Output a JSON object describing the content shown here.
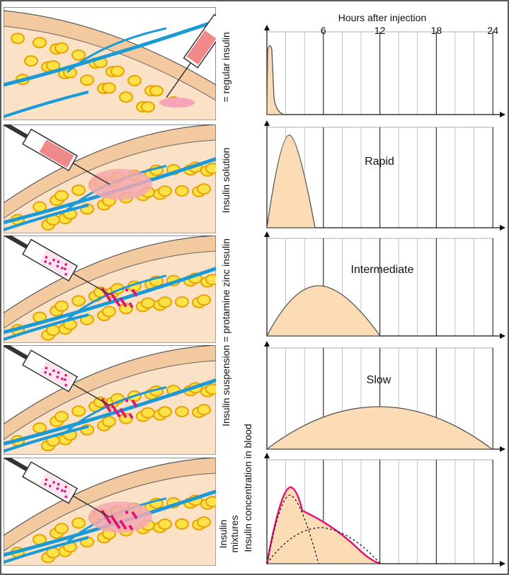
{
  "header": {
    "x_axis_title": "Hours after injection",
    "y_axis_title": "Insulin concentration in blood",
    "hour_ticks": [
      6,
      12,
      18,
      24
    ]
  },
  "side_labels": [
    "= regular insulin",
    "Insulin solution",
    "Insulin suspension = protamine zinc insulin"
  ],
  "mixture_label": [
    "Insulin",
    "mixtures"
  ],
  "curve_labels": [
    "Rapid",
    "Intermediate",
    "Slow"
  ]
}
